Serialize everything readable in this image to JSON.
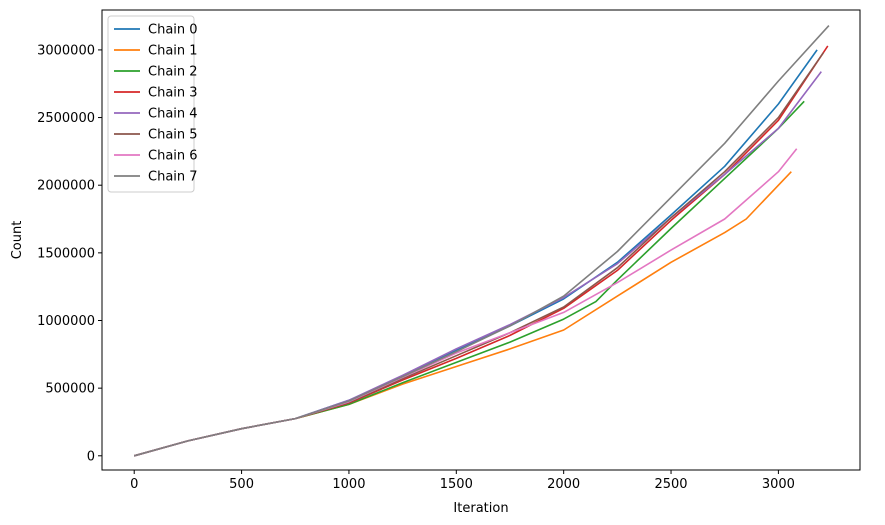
{
  "chart_data": {
    "type": "line",
    "title": "",
    "xlabel": "Iteration",
    "ylabel": "Count",
    "xlim": [
      -150,
      3380
    ],
    "ylim": [
      -105000,
      3295000
    ],
    "xticks": [
      0,
      500,
      1000,
      1500,
      2000,
      2500,
      3000
    ],
    "xtick_labels": [
      "0",
      "500",
      "1000",
      "1500",
      "2000",
      "2500",
      "3000"
    ],
    "yticks": [
      0,
      500000,
      1000000,
      1500000,
      2000000,
      2500000,
      3000000
    ],
    "ytick_labels": [
      "0",
      "500000",
      "1000000",
      "1500000",
      "2000000",
      "2500000",
      "3000000"
    ],
    "grid": false,
    "legend_position": "top-left",
    "series": [
      {
        "name": "Chain 0",
        "color": "#1f77b4",
        "x": [
          0,
          250,
          500,
          750,
          1000,
          1250,
          1500,
          1750,
          2000,
          2250,
          2500,
          2750,
          3000,
          3180
        ],
        "y": [
          0,
          110000,
          200000,
          275000,
          410000,
          590000,
          780000,
          960000,
          1160000,
          1430000,
          1780000,
          2140000,
          2600000,
          3000000
        ]
      },
      {
        "name": "Chain 1",
        "color": "#ff7f0e",
        "x": [
          0,
          250,
          500,
          750,
          1000,
          1250,
          1500,
          1750,
          2000,
          2250,
          2500,
          2750,
          2850,
          3060
        ],
        "y": [
          0,
          110000,
          200000,
          275000,
          380000,
          530000,
          660000,
          790000,
          930000,
          1180000,
          1430000,
          1650000,
          1750000,
          2100000
        ]
      },
      {
        "name": "Chain 2",
        "color": "#2ca02c",
        "x": [
          0,
          250,
          500,
          750,
          1000,
          1250,
          1500,
          1750,
          2000,
          2150,
          2250,
          2500,
          2750,
          3000,
          3120
        ],
        "y": [
          0,
          110000,
          200000,
          275000,
          380000,
          540000,
          690000,
          840000,
          1010000,
          1140000,
          1300000,
          1680000,
          2050000,
          2420000,
          2620000
        ]
      },
      {
        "name": "Chain 3",
        "color": "#d62728",
        "x": [
          0,
          250,
          500,
          750,
          1000,
          1250,
          1500,
          1750,
          2000,
          2250,
          2500,
          2750,
          3000,
          3230
        ],
        "y": [
          0,
          110000,
          200000,
          275000,
          390000,
          560000,
          720000,
          890000,
          1090000,
          1370000,
          1740000,
          2080000,
          2480000,
          3030000
        ]
      },
      {
        "name": "Chain 4",
        "color": "#9467bd",
        "x": [
          0,
          250,
          500,
          750,
          1000,
          1250,
          1500,
          1750,
          2000,
          2250,
          2500,
          2750,
          3000,
          3200
        ],
        "y": [
          0,
          110000,
          200000,
          275000,
          410000,
          595000,
          790000,
          970000,
          1170000,
          1420000,
          1760000,
          2080000,
          2420000,
          2840000
        ]
      },
      {
        "name": "Chain 5",
        "color": "#8c564b",
        "x": [
          0,
          250,
          500,
          750,
          1000,
          1250,
          1500,
          1750,
          2000,
          2250,
          2500,
          2750,
          3000,
          3210
        ],
        "y": [
          0,
          110000,
          200000,
          275000,
          395000,
          570000,
          740000,
          910000,
          1100000,
          1390000,
          1760000,
          2100000,
          2500000,
          2980000
        ]
      },
      {
        "name": "Chain 6",
        "color": "#e377c2",
        "x": [
          0,
          250,
          500,
          750,
          1000,
          1250,
          1500,
          1750,
          2000,
          2250,
          2500,
          2750,
          3000,
          3085
        ],
        "y": [
          0,
          110000,
          200000,
          275000,
          400000,
          580000,
          760000,
          910000,
          1060000,
          1280000,
          1520000,
          1750000,
          2100000,
          2270000
        ]
      },
      {
        "name": "Chain 7",
        "color": "#7f7f7f",
        "x": [
          0,
          250,
          500,
          750,
          1000,
          1250,
          1500,
          1750,
          2000,
          2250,
          2500,
          2750,
          3000,
          3235
        ],
        "y": [
          0,
          110000,
          200000,
          275000,
          405000,
          585000,
          770000,
          960000,
          1180000,
          1510000,
          1910000,
          2310000,
          2770000,
          3180000
        ]
      }
    ]
  }
}
